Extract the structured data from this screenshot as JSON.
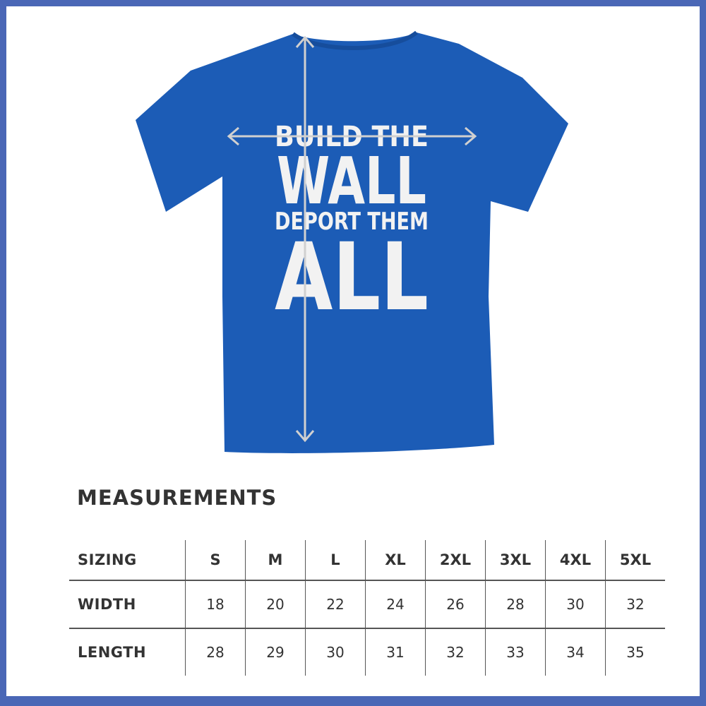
{
  "colors": {
    "frame": "#4a67b6",
    "shirt": "#1c5cb6",
    "print": "#f2f2f2",
    "arrows": "#d0d0d0"
  },
  "shirt_print": {
    "line1": "BUILD THE",
    "line2": "WALL",
    "line3": "DEPORT THEM",
    "line4": "ALL"
  },
  "measurements": {
    "title": "MEASUREMENTS",
    "header": [
      "SIZING",
      "S",
      "M",
      "L",
      "XL",
      "2XL",
      "3XL",
      "4XL",
      "5XL"
    ],
    "rows": [
      {
        "label": "WIDTH",
        "values": [
          "18",
          "20",
          "22",
          "24",
          "26",
          "28",
          "30",
          "32"
        ]
      },
      {
        "label": "LENGTH",
        "values": [
          "28",
          "29",
          "30",
          "31",
          "32",
          "33",
          "34",
          "35"
        ]
      }
    ]
  }
}
